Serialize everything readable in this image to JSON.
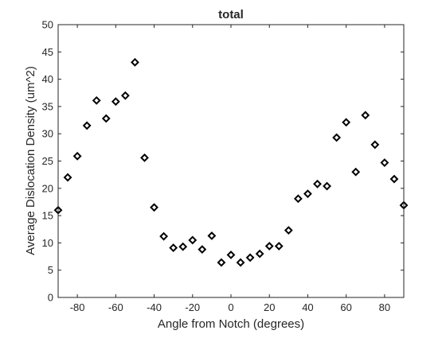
{
  "chart_data": {
    "type": "scatter",
    "title": "total",
    "xlabel": "Angle from Notch (degrees)",
    "ylabel": "Average Dislocation Density (um^2)",
    "xlim": [
      -90,
      90
    ],
    "ylim": [
      0,
      50
    ],
    "xticks": [
      -80,
      -60,
      -40,
      -20,
      0,
      20,
      40,
      60,
      80
    ],
    "yticks": [
      0,
      5,
      10,
      15,
      20,
      25,
      30,
      35,
      40,
      45,
      50
    ],
    "grid": false,
    "marker": "diamond",
    "marker_color": "#000000",
    "series": [
      {
        "x": [
          -90,
          -85,
          -80,
          -75,
          -70,
          -65,
          -60,
          -55,
          -50,
          -45,
          -40,
          -35,
          -30,
          -25,
          -20,
          -15,
          -10,
          -5,
          0,
          5,
          10,
          15,
          20,
          25,
          30,
          35,
          40,
          45,
          50,
          55,
          60,
          65,
          70,
          75,
          80,
          85,
          90
        ],
        "y": [
          16.0,
          22.0,
          25.9,
          31.5,
          36.1,
          32.8,
          35.9,
          37.0,
          43.1,
          25.6,
          16.5,
          11.2,
          9.1,
          9.3,
          10.5,
          8.8,
          11.3,
          6.4,
          7.8,
          6.4,
          7.3,
          8.0,
          9.4,
          9.4,
          12.3,
          18.1,
          19.0,
          20.8,
          20.4,
          29.3,
          32.1,
          23.0,
          33.4,
          28.0,
          24.7,
          21.7,
          16.9
        ]
      }
    ]
  }
}
